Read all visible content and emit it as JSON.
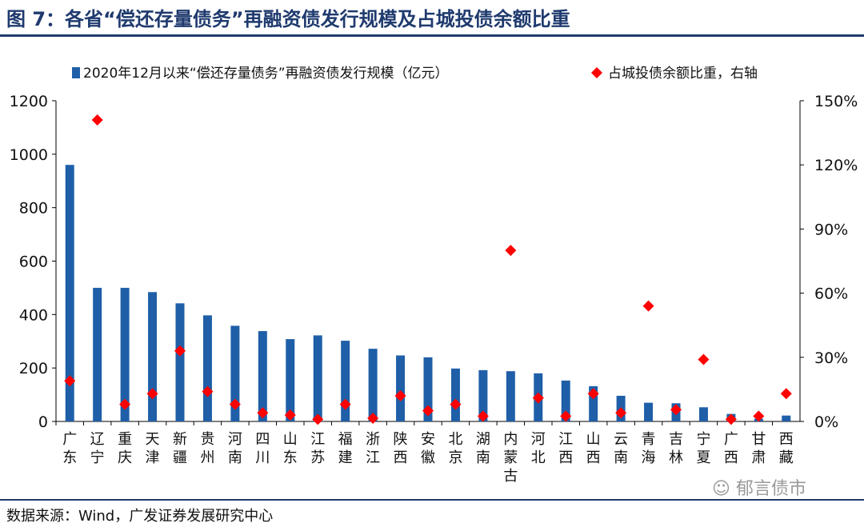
{
  "header": {
    "title": "图 7：各省“偿还存量债务”再融资债发行规模及占城投债余额比重"
  },
  "footer": {
    "source": "数据来源：Wind，广发证券发展研究中心",
    "watermark": "郁言债市"
  },
  "chart_data": {
    "type": "bar",
    "categories": [
      "广东",
      "辽宁",
      "重庆",
      "天津",
      "新疆",
      "贵州",
      "河南",
      "四川",
      "山东",
      "江苏",
      "福建",
      "浙江",
      "陕西",
      "安徽",
      "北京",
      "湖南",
      "内蒙古",
      "河北",
      "江西",
      "山西",
      "云南",
      "青海",
      "吉林",
      "宁夏",
      "广西",
      "甘肃",
      "西藏"
    ],
    "series": [
      {
        "name": "2020年12月以来“偿还存量债务”再融资债发行规模（亿元）",
        "kind": "bar",
        "axis": "left",
        "color": "#1f5fa8",
        "values": [
          960,
          500,
          500,
          484,
          442,
          397,
          358,
          338,
          308,
          322,
          302,
          272,
          247,
          240,
          198,
          192,
          188,
          180,
          153,
          132,
          96,
          70,
          68,
          53,
          28,
          10,
          22
        ]
      },
      {
        "name": "占城投债余额比重，右轴",
        "kind": "scatter",
        "marker": "diamond",
        "axis": "right",
        "color": "#ff0000",
        "values": [
          19.0,
          141.0,
          8.0,
          13.0,
          33.0,
          14.0,
          8.0,
          4.0,
          3.0,
          1.0,
          8.0,
          1.5,
          12.0,
          5.0,
          8.0,
          2.5,
          80.0,
          11.0,
          2.5,
          13.0,
          4.0,
          54.0,
          5.5,
          29.0,
          1.0,
          2.5,
          13.0
        ]
      }
    ],
    "y_left": {
      "min": 0,
      "max": 1200,
      "ticks": [
        "0",
        "200",
        "400",
        "600",
        "800",
        "1000",
        "1200"
      ]
    },
    "y_right": {
      "min": 0,
      "max": 150,
      "ticks": [
        "0%",
        "30%",
        "60%",
        "90%",
        "120%",
        "150%"
      ]
    },
    "legend_position": "top"
  }
}
